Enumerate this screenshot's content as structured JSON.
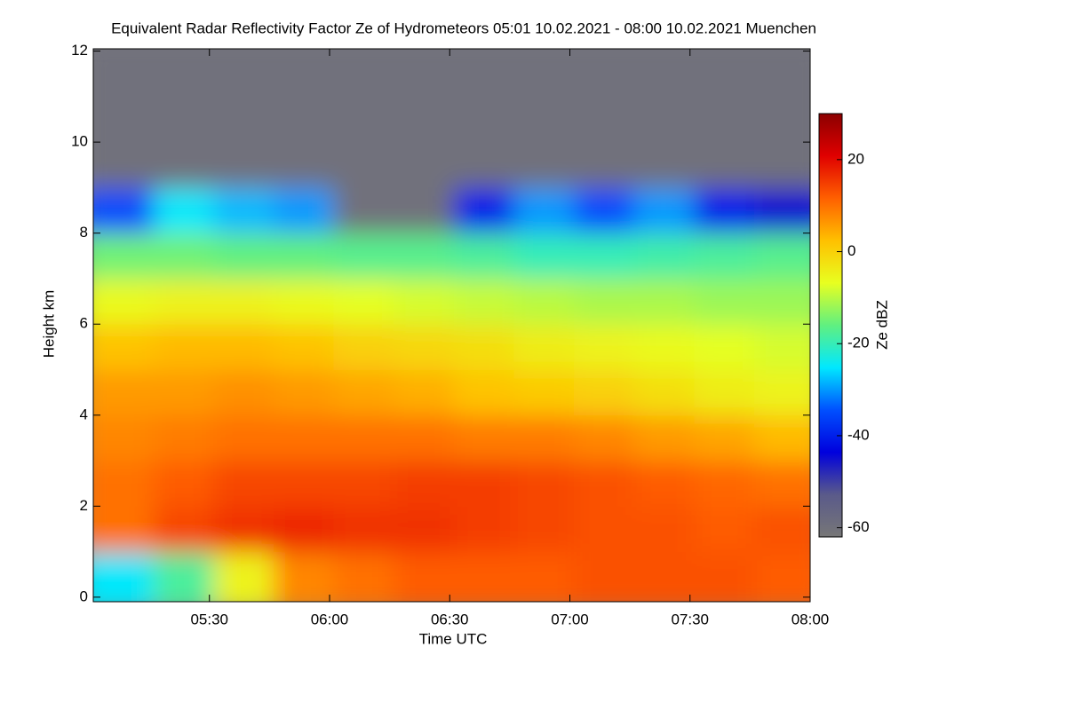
{
  "chart_data": {
    "type": "heatmap",
    "title": "Equivalent Radar Reflectivity Factor Ze of Hydrometeors   05:01 10.02.2021 - 08:00 10.02.2021 Muenchen",
    "x_label": "Time UTC",
    "y_label": "Height km",
    "colorbar_label": "Ze dBZ",
    "xlim": [
      301,
      480
    ],
    "xticks": [
      {
        "value": 330,
        "label": "05:30"
      },
      {
        "value": 360,
        "label": "06:00"
      },
      {
        "value": 390,
        "label": "06:30"
      },
      {
        "value": 420,
        "label": "07:00"
      },
      {
        "value": 450,
        "label": "07:30"
      },
      {
        "value": 480,
        "label": "08:00"
      }
    ],
    "ylim": [
      -0.1,
      12.05
    ],
    "yticks": [
      0,
      2,
      4,
      6,
      8,
      10,
      12
    ],
    "clim": [
      -62,
      30
    ],
    "cticks": [
      -60,
      -40,
      -20,
      0,
      20
    ],
    "colors": [
      "#777777",
      "#5a5a8a",
      "#0000dd",
      "#0050ff",
      "#00e8ff",
      "#60f080",
      "#e8ff20",
      "#ffc000",
      "#ff6000",
      "#e00000",
      "#8b0000"
    ],
    "x": [
      308.5,
      323.5,
      338.5,
      353.5,
      368.5,
      383.5,
      398.5,
      413.5,
      428.5,
      443.5,
      458.5,
      473.5
    ],
    "y": [
      0.5,
      1.5,
      2.5,
      3.5,
      4.5,
      5.5,
      6.5,
      7.5,
      8.5,
      9.5,
      10.5,
      11.5
    ],
    "values": [
      [
        -25,
        -18,
        -5,
        8,
        10,
        12,
        12,
        12,
        13,
        13,
        13,
        12
      ],
      [
        10,
        14,
        16,
        17,
        16,
        16,
        15,
        14,
        13,
        13,
        12,
        13
      ],
      [
        10,
        12,
        14,
        14,
        14,
        15,
        15,
        14,
        13,
        12,
        11,
        10
      ],
      [
        8,
        9,
        10,
        10,
        10,
        10,
        9,
        9,
        8,
        6,
        5,
        3
      ],
      [
        6,
        6,
        7,
        6,
        5,
        4,
        2,
        1,
        0,
        -2,
        -4,
        -5
      ],
      [
        2,
        3,
        3,
        2,
        0,
        -1,
        -2,
        -4,
        -5,
        -6,
        -7,
        -8
      ],
      [
        -6,
        -5,
        -5,
        -6,
        -7,
        -8,
        -9,
        -10,
        -11,
        -11,
        -12,
        -12
      ],
      [
        -15,
        -15,
        -16,
        -16,
        -17,
        -17,
        -18,
        -20,
        -20,
        -19,
        -18,
        -17
      ],
      [
        -35,
        -25,
        -28,
        -30,
        -60,
        -60,
        -40,
        -30,
        -35,
        -30,
        -40,
        -45
      ],
      [
        -60,
        -60,
        -60,
        -60,
        -60,
        -60,
        -60,
        -60,
        -60,
        -60,
        -60,
        -60
      ],
      [
        -60,
        -60,
        -60,
        -60,
        -60,
        -60,
        -60,
        -60,
        -60,
        -60,
        -60,
        -60
      ],
      [
        -60,
        -60,
        -60,
        -60,
        -60,
        -60,
        -60,
        -60,
        -60,
        -60,
        -60,
        -60
      ]
    ]
  }
}
